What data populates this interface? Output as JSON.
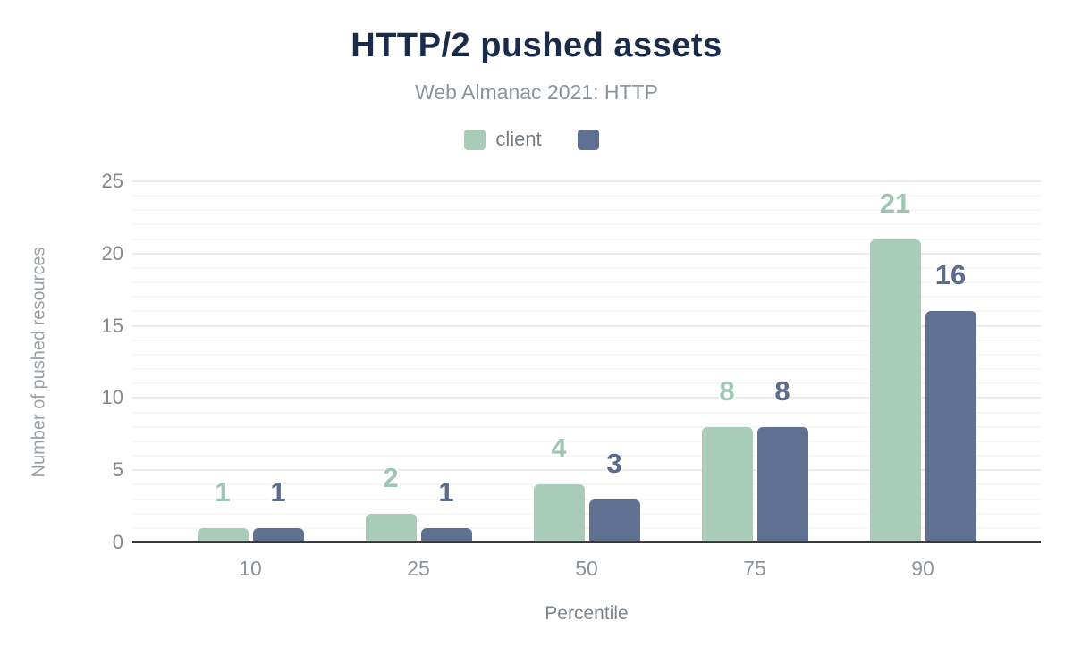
{
  "header": {
    "title": "HTTP/2 pushed assets",
    "subtitle": "Web Almanac 2021: HTTP"
  },
  "chart_data": {
    "type": "bar",
    "title": "HTTP/2 pushed assets",
    "subtitle": "Web Almanac 2021: HTTP",
    "categories": [
      "10",
      "25",
      "50",
      "75",
      "90"
    ],
    "series": [
      {
        "name": "client",
        "color": "#a9ccb8",
        "label_color": "#9ec7b1",
        "values": [
          1,
          2,
          4,
          8,
          21
        ]
      },
      {
        "name": "",
        "color": "#5f7190",
        "label_color": "#5a6b8d",
        "values": [
          1,
          1,
          3,
          8,
          16
        ]
      }
    ],
    "xlabel": "Percentile",
    "ylabel": "Number of pushed resources",
    "ylim": [
      0,
      25
    ],
    "yticks": [
      0,
      5,
      10,
      15,
      20,
      25
    ],
    "minor_step": 1,
    "grid": true,
    "legend_position": "top",
    "colors": {
      "title": "#1b2b4a",
      "subtitle": "#8b949b",
      "axis_line": "#37393c",
      "tick_label": "#85898d",
      "grid_minor": "#f7f7f7",
      "grid_major": "#ececec"
    }
  }
}
